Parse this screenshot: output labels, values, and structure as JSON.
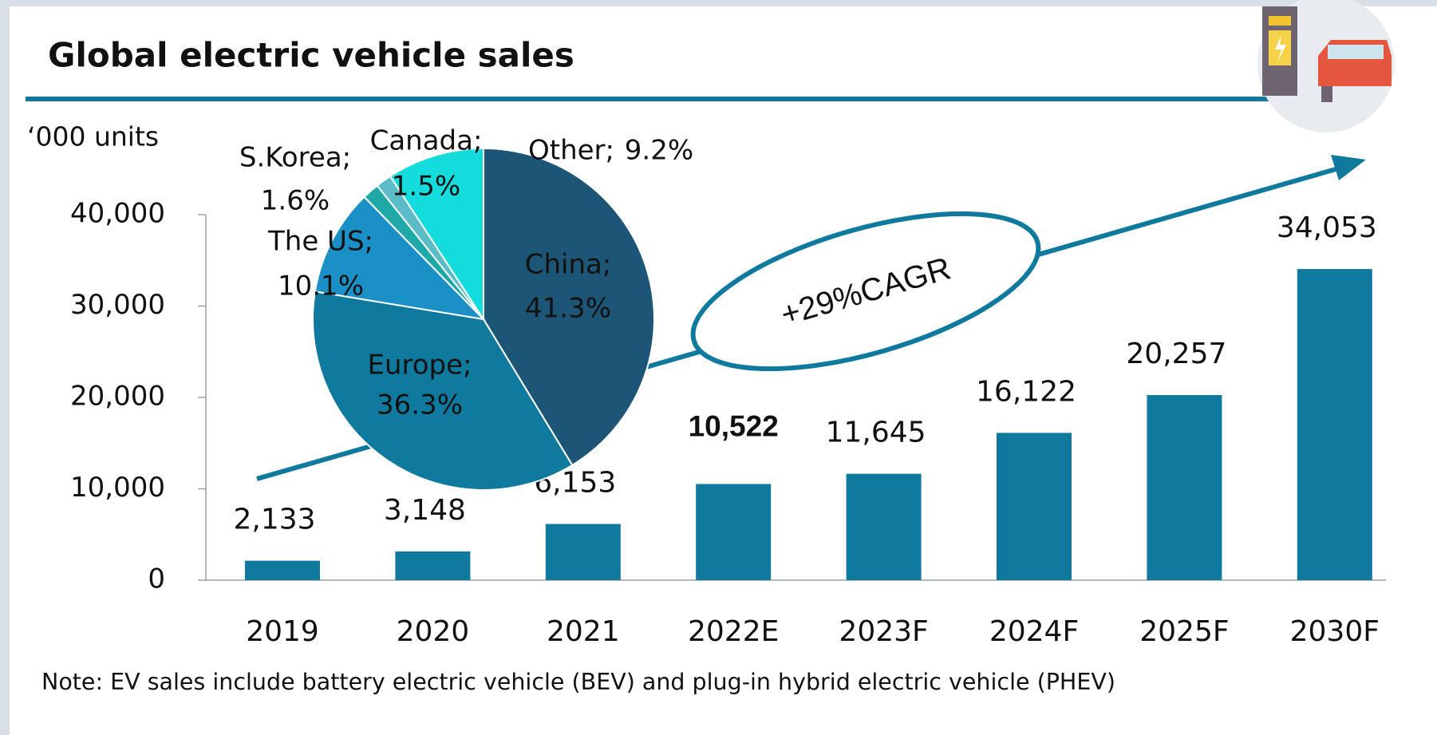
{
  "chart_data": [
    {
      "type": "bar",
      "title": "Global electric vehicle sales",
      "ylabel": "‘000 units",
      "note": "Note: EV sales include battery electric vehicle (BEV) and plug-in hybrid electric vehicle (PHEV)",
      "annotation": "+29%CAGR",
      "categories": [
        "2019",
        "2020",
        "2021",
        "2022E",
        "2023F",
        "2024F",
        "2025F",
        "2030F"
      ],
      "values": [
        2133,
        3148,
        6153,
        10522,
        11645,
        16122,
        20257,
        34053
      ],
      "value_labels": [
        "2,133",
        "3,148",
        "6,153",
        "10,522",
        "11,645",
        "16,122",
        "20,257",
        "34,053"
      ],
      "color": "#0f7a9e",
      "ylim": [
        0,
        40000
      ],
      "yticks": [
        0,
        {
          "value": 10000,
          "label": "10,000"
        },
        {
          "value": 20000,
          "label": "20,000"
        },
        {
          "value": 30000,
          "label": "30,000"
        },
        {
          "value": 40000,
          "label": "40,000"
        }
      ]
    },
    {
      "type": "pie",
      "categories": [
        "China;",
        "Europe;",
        "The US;",
        "S.Korea;",
        "Canada;",
        "Other;"
      ],
      "values": [
        41.3,
        36.3,
        10.1,
        1.6,
        1.5,
        9.2
      ],
      "value_labels": [
        "41.3%",
        "36.3%",
        "10.1%",
        "1.6%",
        "1.5%",
        "9.2%"
      ],
      "colors": [
        "#1d5577",
        "#0f7a9e",
        "#1a90c6",
        "#1fa8a8",
        "#5bbcc8",
        "#14dcdc"
      ]
    }
  ]
}
